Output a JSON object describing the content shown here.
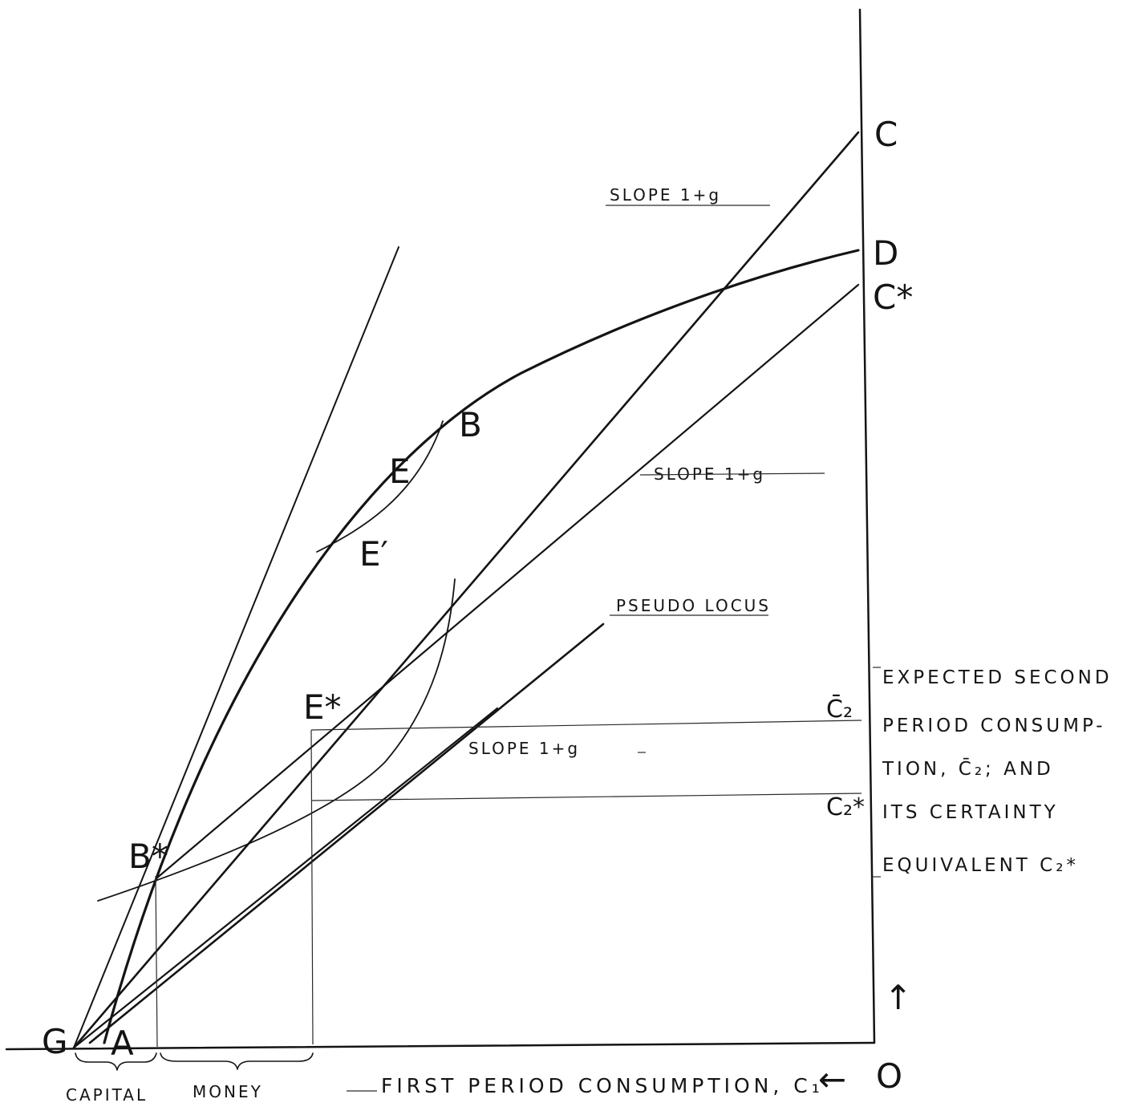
{
  "labels": {
    "C": "C",
    "D": "D",
    "C_star": "C*",
    "B": "B",
    "E": "E",
    "E_prime": "E′",
    "E_star": "E*",
    "B_star": "B*",
    "G": "G",
    "A": "A",
    "O": "O",
    "slope_top": "SLOPE 1+g",
    "slope_mid": "SLOPE 1+g",
    "slope_low": "SLOPE 1+g",
    "pseudo_locus": "PSEUDO LOCUS",
    "c2_bar": "C̄₂",
    "c2_star": "C₂*",
    "capital": "CAPITAL",
    "money": "MONEY",
    "x_axis_label": "FIRST PERIOD CONSUMPTION, C₁",
    "x_arrow": "←",
    "y_arrow": "↑"
  },
  "side_note": {
    "line1": "EXPECTED SECOND",
    "line2": "PERIOD CONSUMP-",
    "line3": "TION, C̄₂; AND",
    "line4": "ITS CERTAINTY",
    "line5": "EQUIVALENT C₂*"
  }
}
